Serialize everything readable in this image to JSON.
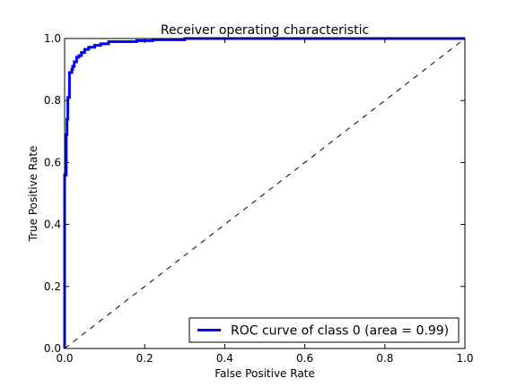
{
  "chart_data": {
    "type": "line",
    "title": "Receiver operating characteristic",
    "xlabel": "False Positive Rate",
    "ylabel": "True Positive Rate",
    "xlim": [
      0,
      1
    ],
    "ylim": [
      0,
      1
    ],
    "xticks": [
      "0.0",
      "0.2",
      "0.4",
      "0.6",
      "0.8",
      "1.0"
    ],
    "yticks": [
      "0.0",
      "0.2",
      "0.4",
      "0.6",
      "0.8",
      "1.0"
    ],
    "grid": false,
    "legend_position": "lower-right",
    "series": [
      {
        "name": "ROC curve of class 0 (area = 0.99)",
        "color": "#0000ff",
        "style": "solid",
        "x": [
          0.0,
          0.0,
          0.004,
          0.004,
          0.006,
          0.006,
          0.008,
          0.008,
          0.012,
          0.012,
          0.018,
          0.018,
          0.02,
          0.02,
          0.024,
          0.024,
          0.03,
          0.03,
          0.036,
          0.036,
          0.042,
          0.042,
          0.05,
          0.05,
          0.06,
          0.06,
          0.075,
          0.075,
          0.09,
          0.09,
          0.11,
          0.11,
          0.18,
          0.18,
          0.22,
          0.22,
          0.3,
          0.3,
          1.0
        ],
        "y": [
          0.0,
          0.56,
          0.56,
          0.69,
          0.69,
          0.74,
          0.74,
          0.81,
          0.81,
          0.89,
          0.89,
          0.9,
          0.9,
          0.91,
          0.91,
          0.925,
          0.925,
          0.94,
          0.94,
          0.945,
          0.945,
          0.955,
          0.955,
          0.965,
          0.965,
          0.972,
          0.972,
          0.978,
          0.978,
          0.983,
          0.983,
          0.99,
          0.99,
          0.993,
          0.993,
          0.996,
          0.996,
          1.0,
          1.0
        ]
      },
      {
        "name": "",
        "color": "#000000",
        "style": "dashed",
        "x": [
          0,
          1
        ],
        "y": [
          0,
          1
        ]
      }
    ]
  }
}
